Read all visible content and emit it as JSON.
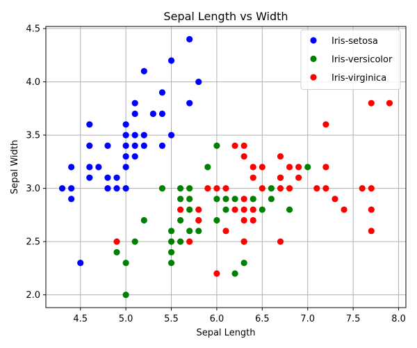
{
  "chart_data": {
    "type": "scatter",
    "title": "Sepal Length vs Width",
    "xlabel": "Sepal Length",
    "ylabel": "Sepal Width",
    "xlim": [
      4.12,
      8.08
    ],
    "ylim": [
      1.88,
      4.52
    ],
    "xticks": [
      4.5,
      5.0,
      5.5,
      6.0,
      6.5,
      7.0,
      7.5,
      8.0
    ],
    "yticks": [
      2.0,
      2.5,
      3.0,
      3.5,
      4.0,
      4.5
    ],
    "xtick_labels": [
      "4.5",
      "5.0",
      "5.5",
      "6.0",
      "6.5",
      "7.0",
      "7.5",
      "8.0"
    ],
    "ytick_labels": [
      "2.0",
      "2.5",
      "3.0",
      "3.5",
      "4.0",
      "4.5"
    ],
    "grid": true,
    "legend_position": "top-right",
    "series": [
      {
        "name": "Iris-setosa",
        "color": "#0000ff",
        "points": [
          [
            4.3,
            3.0
          ],
          [
            4.4,
            3.0
          ],
          [
            4.4,
            3.2
          ],
          [
            4.4,
            2.9
          ],
          [
            4.5,
            2.3
          ],
          [
            4.6,
            3.6
          ],
          [
            4.6,
            3.4
          ],
          [
            4.6,
            3.2
          ],
          [
            4.6,
            3.1
          ],
          [
            4.7,
            3.2
          ],
          [
            4.8,
            3.4
          ],
          [
            4.8,
            3.1
          ],
          [
            4.8,
            3.0
          ],
          [
            4.9,
            3.1
          ],
          [
            4.9,
            3.0
          ],
          [
            5.0,
            3.6
          ],
          [
            5.0,
            3.5
          ],
          [
            5.0,
            3.4
          ],
          [
            5.0,
            3.3
          ],
          [
            5.0,
            3.2
          ],
          [
            5.0,
            3.0
          ],
          [
            5.1,
            3.8
          ],
          [
            5.1,
            3.7
          ],
          [
            5.1,
            3.5
          ],
          [
            5.1,
            3.4
          ],
          [
            5.1,
            3.3
          ],
          [
            5.2,
            4.1
          ],
          [
            5.2,
            3.5
          ],
          [
            5.2,
            3.4
          ],
          [
            5.3,
            3.7
          ],
          [
            5.4,
            3.9
          ],
          [
            5.4,
            3.7
          ],
          [
            5.4,
            3.4
          ],
          [
            5.5,
            4.2
          ],
          [
            5.5,
            3.5
          ],
          [
            5.7,
            4.4
          ],
          [
            5.7,
            3.8
          ],
          [
            5.8,
            4.0
          ]
        ]
      },
      {
        "name": "Iris-versicolor",
        "color": "#008000",
        "points": [
          [
            4.9,
            2.4
          ],
          [
            5.0,
            2.3
          ],
          [
            5.0,
            2.0
          ],
          [
            5.1,
            2.5
          ],
          [
            5.2,
            2.7
          ],
          [
            5.4,
            3.0
          ],
          [
            5.5,
            2.6
          ],
          [
            5.5,
            2.5
          ],
          [
            5.5,
            2.4
          ],
          [
            5.5,
            2.3
          ],
          [
            5.6,
            3.0
          ],
          [
            5.6,
            2.9
          ],
          [
            5.6,
            2.7
          ],
          [
            5.6,
            2.5
          ],
          [
            5.7,
            3.0
          ],
          [
            5.7,
            2.9
          ],
          [
            5.7,
            2.8
          ],
          [
            5.7,
            2.6
          ],
          [
            5.8,
            2.7
          ],
          [
            5.8,
            2.6
          ],
          [
            5.9,
            3.2
          ],
          [
            6.0,
            3.4
          ],
          [
            6.0,
            2.9
          ],
          [
            6.0,
            2.7
          ],
          [
            6.1,
            2.9
          ],
          [
            6.1,
            2.8
          ],
          [
            6.2,
            2.9
          ],
          [
            6.2,
            2.2
          ],
          [
            6.3,
            2.5
          ],
          [
            6.3,
            2.3
          ],
          [
            6.4,
            2.9
          ],
          [
            6.5,
            2.8
          ],
          [
            6.6,
            3.0
          ],
          [
            6.6,
            2.9
          ],
          [
            6.7,
            3.1
          ],
          [
            6.8,
            2.8
          ],
          [
            7.0,
            3.2
          ]
        ]
      },
      {
        "name": "Iris-virginica",
        "color": "#ff0000",
        "points": [
          [
            4.9,
            2.5
          ],
          [
            5.6,
            2.8
          ],
          [
            5.7,
            2.5
          ],
          [
            5.8,
            2.8
          ],
          [
            5.8,
            2.7
          ],
          [
            5.9,
            3.0
          ],
          [
            6.0,
            3.0
          ],
          [
            6.0,
            2.2
          ],
          [
            6.1,
            3.0
          ],
          [
            6.1,
            2.6
          ],
          [
            6.2,
            3.4
          ],
          [
            6.2,
            2.8
          ],
          [
            6.3,
            3.4
          ],
          [
            6.3,
            3.3
          ],
          [
            6.3,
            2.9
          ],
          [
            6.3,
            2.8
          ],
          [
            6.3,
            2.7
          ],
          [
            6.3,
            2.5
          ],
          [
            6.4,
            3.2
          ],
          [
            6.4,
            3.1
          ],
          [
            6.4,
            2.8
          ],
          [
            6.4,
            2.7
          ],
          [
            6.5,
            3.2
          ],
          [
            6.5,
            3.0
          ],
          [
            6.7,
            3.3
          ],
          [
            6.7,
            3.1
          ],
          [
            6.7,
            3.0
          ],
          [
            6.7,
            2.5
          ],
          [
            6.8,
            3.2
          ],
          [
            6.8,
            3.0
          ],
          [
            6.9,
            3.2
          ],
          [
            6.9,
            3.1
          ],
          [
            7.1,
            3.0
          ],
          [
            7.2,
            3.6
          ],
          [
            7.2,
            3.2
          ],
          [
            7.2,
            3.0
          ],
          [
            7.3,
            2.9
          ],
          [
            7.4,
            2.8
          ],
          [
            7.6,
            3.0
          ],
          [
            7.7,
            3.8
          ],
          [
            7.7,
            3.0
          ],
          [
            7.7,
            2.8
          ],
          [
            7.7,
            2.6
          ],
          [
            7.9,
            3.8
          ]
        ]
      }
    ]
  }
}
